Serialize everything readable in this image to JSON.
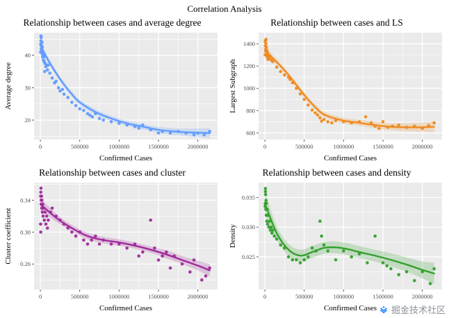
{
  "title": "Correlation Analysis",
  "watermark": {
    "text": "掘金技术社区",
    "icon": "juejin-logo",
    "icon_color": "#1E80FF"
  },
  "chart_data": [
    {
      "type": "scatter",
      "title": "Relationship between cases and average degree",
      "xlabel": "Confirmed Cases",
      "ylabel": "Average degree",
      "color": "#619CFF",
      "panel_background": "#EBEBEB",
      "grid": true,
      "legend": "none",
      "xlim": [
        -80000,
        2250000
      ],
      "ylim": [
        14,
        47
      ],
      "xticks": {
        "values": [
          0,
          500000,
          1000000,
          1500000,
          2000000
        ],
        "labels": [
          "0",
          "500000",
          "1000000",
          "1500000",
          "2000000"
        ]
      },
      "yticks": {
        "values": [
          20,
          30,
          40
        ],
        "labels": [
          "20",
          "30",
          "40"
        ]
      },
      "points": [
        [
          3000,
          41
        ],
        [
          5000,
          43.5
        ],
        [
          7000,
          46
        ],
        [
          8000,
          44.5
        ],
        [
          10000,
          45.5
        ],
        [
          12000,
          42
        ],
        [
          15000,
          43
        ],
        [
          18000,
          41.5
        ],
        [
          20000,
          44
        ],
        [
          22000,
          40.5
        ],
        [
          25000,
          42.5
        ],
        [
          28000,
          39.5
        ],
        [
          30000,
          41
        ],
        [
          35000,
          40
        ],
        [
          40000,
          38.5
        ],
        [
          45000,
          39.5
        ],
        [
          50000,
          38
        ],
        [
          55000,
          35
        ],
        [
          60000,
          37.5
        ],
        [
          70000,
          36.5
        ],
        [
          80000,
          37
        ],
        [
          90000,
          35.5
        ],
        [
          100000,
          37
        ],
        [
          120000,
          34.5
        ],
        [
          150000,
          33
        ],
        [
          180000,
          31.5
        ],
        [
          200000,
          32
        ],
        [
          230000,
          30
        ],
        [
          250000,
          29
        ],
        [
          280000,
          29.5
        ],
        [
          300000,
          28
        ],
        [
          350000,
          27
        ],
        [
          400000,
          25.5
        ],
        [
          450000,
          24.5
        ],
        [
          500000,
          23.5
        ],
        [
          550000,
          23
        ],
        [
          600000,
          22
        ],
        [
          630000,
          21.5
        ],
        [
          660000,
          21
        ],
        [
          700000,
          22
        ],
        [
          750000,
          20.5
        ],
        [
          800000,
          20
        ],
        [
          900000,
          19.5
        ],
        [
          1000000,
          19
        ],
        [
          1100000,
          18.5
        ],
        [
          1200000,
          18
        ],
        [
          1250000,
          17.5
        ],
        [
          1300000,
          18.5
        ],
        [
          1400000,
          17
        ],
        [
          1500000,
          16
        ],
        [
          1550000,
          16.5
        ],
        [
          1650000,
          16
        ],
        [
          1750000,
          16.5
        ],
        [
          1850000,
          16
        ],
        [
          1950000,
          15.5
        ],
        [
          2000000,
          16
        ],
        [
          2080000,
          15.5
        ],
        [
          2150000,
          16.5
        ]
      ],
      "trend": {
        "x": [
          0,
          100000,
          200000,
          300000,
          400000,
          500000,
          700000,
          900000,
          1100000,
          1300000,
          1500000,
          1700000,
          1900000,
          2150000
        ],
        "y": [
          43,
          38.5,
          34.5,
          31,
          28,
          25.5,
          22.5,
          20.5,
          19,
          18,
          17,
          16.5,
          16.2,
          16
        ],
        "band": [
          1.5,
          1,
          0.8,
          0.8,
          0.8,
          0.8,
          0.8,
          0.8,
          0.8,
          0.8,
          0.9,
          1,
          1.2,
          1.5
        ]
      }
    },
    {
      "type": "scatter",
      "title": "Relationship between cases and LS",
      "xlabel": "Confirmed Cases",
      "ylabel": "Largest Subgraph",
      "color": "#EE8B22",
      "panel_background": "#EBEBEB",
      "grid": true,
      "legend": "none",
      "xlim": [
        -80000,
        2250000
      ],
      "ylim": [
        540,
        1500
      ],
      "xticks": {
        "values": [
          0,
          500000,
          1000000,
          1500000,
          2000000
        ],
        "labels": [
          "0",
          "500000",
          "1000000",
          "1500000",
          "2000000"
        ]
      },
      "yticks": {
        "values": [
          600,
          800,
          1000,
          1200,
          1400
        ],
        "labels": [
          "600",
          "800",
          "1000",
          "1200",
          "1400"
        ]
      },
      "points": [
        [
          3000,
          1300
        ],
        [
          5000,
          1420
        ],
        [
          7000,
          1380
        ],
        [
          9000,
          1430
        ],
        [
          11000,
          1350
        ],
        [
          13000,
          1400
        ],
        [
          15000,
          1440
        ],
        [
          17000,
          1330
        ],
        [
          20000,
          1370
        ],
        [
          23000,
          1300
        ],
        [
          26000,
          1340
        ],
        [
          30000,
          1280
        ],
        [
          34000,
          1320
        ],
        [
          40000,
          1260
        ],
        [
          46000,
          1300
        ],
        [
          55000,
          1270
        ],
        [
          65000,
          1290
        ],
        [
          80000,
          1255
        ],
        [
          100000,
          1240
        ],
        [
          150000,
          1190
        ],
        [
          200000,
          1150
        ],
        [
          250000,
          1120
        ],
        [
          300000,
          1100
        ],
        [
          320000,
          1080
        ],
        [
          350000,
          1050
        ],
        [
          400000,
          1000
        ],
        [
          450000,
          950
        ],
        [
          500000,
          900
        ],
        [
          550000,
          850
        ],
        [
          600000,
          805
        ],
        [
          640000,
          780
        ],
        [
          670000,
          760
        ],
        [
          700000,
          735
        ],
        [
          720000,
          705
        ],
        [
          750000,
          720
        ],
        [
          800000,
          700
        ],
        [
          850000,
          690
        ],
        [
          900000,
          710
        ],
        [
          1000000,
          700
        ],
        [
          1100000,
          690
        ],
        [
          1200000,
          700
        ],
        [
          1280000,
          745
        ],
        [
          1350000,
          690
        ],
        [
          1400000,
          660
        ],
        [
          1450000,
          640
        ],
        [
          1500000,
          700
        ],
        [
          1560000,
          650
        ],
        [
          1620000,
          660
        ],
        [
          1700000,
          670
        ],
        [
          1800000,
          650
        ],
        [
          1900000,
          660
        ],
        [
          2000000,
          640
        ],
        [
          2080000,
          665
        ],
        [
          2150000,
          690
        ]
      ],
      "trend": {
        "x": [
          0,
          100000,
          200000,
          300000,
          400000,
          500000,
          600000,
          700000,
          800000,
          1000000,
          1200000,
          1400000,
          1600000,
          1800000,
          2000000,
          2150000
        ],
        "y": [
          1330,
          1270,
          1200,
          1120,
          1030,
          940,
          860,
          790,
          750,
          710,
          690,
          670,
          655,
          650,
          650,
          655
        ],
        "band": [
          40,
          30,
          25,
          25,
          25,
          25,
          25,
          25,
          25,
          25,
          25,
          30,
          30,
          35,
          40,
          50
        ]
      }
    },
    {
      "type": "scatter",
      "title": "Relationship between cases and cluster",
      "xlabel": "Confirmed Cases",
      "ylabel": "Cluster coefficient",
      "color": "#A12A9B",
      "panel_background": "#EBEBEB",
      "grid": true,
      "legend": "none",
      "xlim": [
        -80000,
        2250000
      ],
      "ylim": [
        0.228,
        0.362
      ],
      "xticks": {
        "values": [
          0,
          500000,
          1000000,
          1500000,
          2000000
        ],
        "labels": [
          "0",
          "500000",
          "1000000",
          "1500000",
          "2000000"
        ]
      },
      "yticks": {
        "values": [
          0.26,
          0.3,
          0.34
        ],
        "labels": [
          "0.26",
          "0.30",
          "0.34"
        ]
      },
      "points": [
        [
          3000,
          0.31
        ],
        [
          4000,
          0.345
        ],
        [
          5000,
          0.3
        ],
        [
          6000,
          0.35
        ],
        [
          8000,
          0.355
        ],
        [
          10000,
          0.34
        ],
        [
          12000,
          0.335
        ],
        [
          15000,
          0.345
        ],
        [
          18000,
          0.33
        ],
        [
          20000,
          0.34
        ],
        [
          25000,
          0.325
        ],
        [
          30000,
          0.335
        ],
        [
          35000,
          0.32
        ],
        [
          40000,
          0.33
        ],
        [
          50000,
          0.315
        ],
        [
          60000,
          0.325
        ],
        [
          70000,
          0.31
        ],
        [
          80000,
          0.32
        ],
        [
          90000,
          0.305
        ],
        [
          100000,
          0.315
        ],
        [
          130000,
          0.325
        ],
        [
          150000,
          0.33
        ],
        [
          200000,
          0.32
        ],
        [
          250000,
          0.315
        ],
        [
          300000,
          0.31
        ],
        [
          350000,
          0.305
        ],
        [
          400000,
          0.3
        ],
        [
          450000,
          0.295
        ],
        [
          500000,
          0.3
        ],
        [
          550000,
          0.29
        ],
        [
          600000,
          0.285
        ],
        [
          650000,
          0.29
        ],
        [
          700000,
          0.295
        ],
        [
          750000,
          0.285
        ],
        [
          800000,
          0.29
        ],
        [
          900000,
          0.285
        ],
        [
          1000000,
          0.285
        ],
        [
          1100000,
          0.28
        ],
        [
          1200000,
          0.285
        ],
        [
          1250000,
          0.27
        ],
        [
          1300000,
          0.275
        ],
        [
          1400000,
          0.315
        ],
        [
          1450000,
          0.28
        ],
        [
          1500000,
          0.265
        ],
        [
          1550000,
          0.27
        ],
        [
          1600000,
          0.275
        ],
        [
          1650000,
          0.255
        ],
        [
          1700000,
          0.27
        ],
        [
          1800000,
          0.26
        ],
        [
          1900000,
          0.25
        ],
        [
          1950000,
          0.265
        ],
        [
          2050000,
          0.24
        ],
        [
          2100000,
          0.245
        ],
        [
          2150000,
          0.255
        ]
      ],
      "trend": {
        "x": [
          0,
          200000,
          400000,
          600000,
          800000,
          1000000,
          1200000,
          1400000,
          1600000,
          1800000,
          2000000,
          2150000
        ],
        "y": [
          0.335,
          0.318,
          0.305,
          0.295,
          0.29,
          0.287,
          0.283,
          0.278,
          0.272,
          0.265,
          0.258,
          0.252
        ],
        "band": [
          0.008,
          0.005,
          0.004,
          0.004,
          0.004,
          0.004,
          0.004,
          0.004,
          0.005,
          0.005,
          0.006,
          0.008
        ]
      }
    },
    {
      "type": "scatter",
      "title": "Relationship between cases and density",
      "xlabel": "Confirmed Cases",
      "ylabel": "Density",
      "color": "#33A02C",
      "panel_background": "#EBEBEB",
      "grid": true,
      "legend": "none",
      "xlim": [
        -80000,
        2250000
      ],
      "ylim": [
        0.0195,
        0.0375
      ],
      "xticks": {
        "values": [
          0,
          500000,
          1000000,
          1500000,
          2000000
        ],
        "labels": [
          "0",
          "500000",
          "1000000",
          "1500000",
          "2000000"
        ]
      },
      "yticks": {
        "values": [
          0.025,
          0.03,
          0.035
        ],
        "labels": [
          "0.025",
          "0.030",
          "0.035"
        ]
      },
      "points": [
        [
          3000,
          0.0335
        ],
        [
          5000,
          0.034
        ],
        [
          7000,
          0.0365
        ],
        [
          8000,
          0.036
        ],
        [
          10000,
          0.0355
        ],
        [
          12000,
          0.033
        ],
        [
          15000,
          0.0345
        ],
        [
          18000,
          0.032
        ],
        [
          20000,
          0.034
        ],
        [
          25000,
          0.031
        ],
        [
          30000,
          0.033
        ],
        [
          35000,
          0.0305
        ],
        [
          40000,
          0.032
        ],
        [
          50000,
          0.03
        ],
        [
          60000,
          0.031
        ],
        [
          70000,
          0.0295
        ],
        [
          80000,
          0.03
        ],
        [
          90000,
          0.029
        ],
        [
          100000,
          0.0295
        ],
        [
          120000,
          0.0285
        ],
        [
          150000,
          0.028
        ],
        [
          200000,
          0.027
        ],
        [
          250000,
          0.0265
        ],
        [
          300000,
          0.025
        ],
        [
          350000,
          0.0245
        ],
        [
          400000,
          0.0245
        ],
        [
          450000,
          0.024
        ],
        [
          500000,
          0.0245
        ],
        [
          550000,
          0.025
        ],
        [
          600000,
          0.0265
        ],
        [
          650000,
          0.026
        ],
        [
          700000,
          0.031
        ],
        [
          720000,
          0.0285
        ],
        [
          750000,
          0.027
        ],
        [
          800000,
          0.026
        ],
        [
          900000,
          0.0245
        ],
        [
          1000000,
          0.026
        ],
        [
          1100000,
          0.025
        ],
        [
          1200000,
          0.0255
        ],
        [
          1300000,
          0.024
        ],
        [
          1400000,
          0.0285
        ],
        [
          1500000,
          0.024
        ],
        [
          1550000,
          0.0235
        ],
        [
          1600000,
          0.023
        ],
        [
          1700000,
          0.022
        ],
        [
          1800000,
          0.0225
        ],
        [
          1900000,
          0.021
        ],
        [
          2000000,
          0.0225
        ],
        [
          2100000,
          0.0205
        ],
        [
          2150000,
          0.023
        ]
      ],
      "trend": {
        "x": [
          0,
          150000,
          300000,
          450000,
          600000,
          750000,
          900000,
          1050000,
          1200000,
          1400000,
          1600000,
          1800000,
          2000000,
          2150000
        ],
        "y": [
          0.034,
          0.029,
          0.0262,
          0.0252,
          0.0258,
          0.0265,
          0.0266,
          0.0263,
          0.0258,
          0.0252,
          0.0245,
          0.0237,
          0.0228,
          0.0222
        ],
        "band": [
          0.002,
          0.0012,
          0.001,
          0.001,
          0.001,
          0.001,
          0.001,
          0.001,
          0.001,
          0.001,
          0.0011,
          0.0012,
          0.0014,
          0.0018
        ]
      }
    }
  ]
}
